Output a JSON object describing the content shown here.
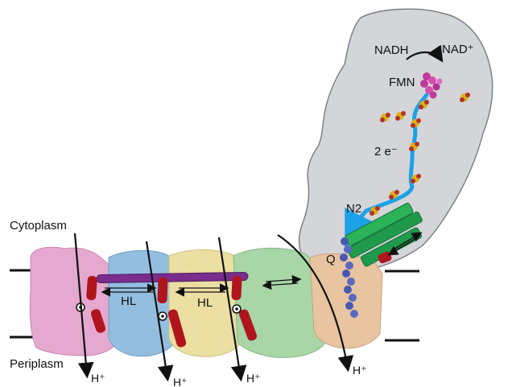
{
  "figure": {
    "labels": {
      "nadh": "NADH",
      "nad_plus": "NAD⁺",
      "fmn": "FMN",
      "electrons": "2 e⁻",
      "n2": "N2",
      "q": "Q",
      "cytoplasm": "Cytoplasm",
      "periplasm": "Periplasm",
      "hl_left": "HL",
      "hl_right": "HL",
      "proton_1": "H⁺",
      "proton_2": "H⁺",
      "proton_3": "H⁺",
      "proton_4": "H⁺"
    },
    "colors": {
      "hydrophilic_arm": "#d4d5d8",
      "electron_path": "#1da1e6",
      "fes_cluster": "#d8b21a",
      "fmn": "#c0399a",
      "helix_red": "#b0151d",
      "helix_purple": "#7a2d8c",
      "helix_green": "#1f9a4a",
      "quinone_channel": "#4a59b0",
      "subunit_pink": "#e5a9d0",
      "subunit_blue": "#93bedf",
      "subunit_yellow": "#ecdfa2",
      "subunit_green": "#a8d6a6",
      "subunit_peach": "#e8c4a0"
    }
  }
}
